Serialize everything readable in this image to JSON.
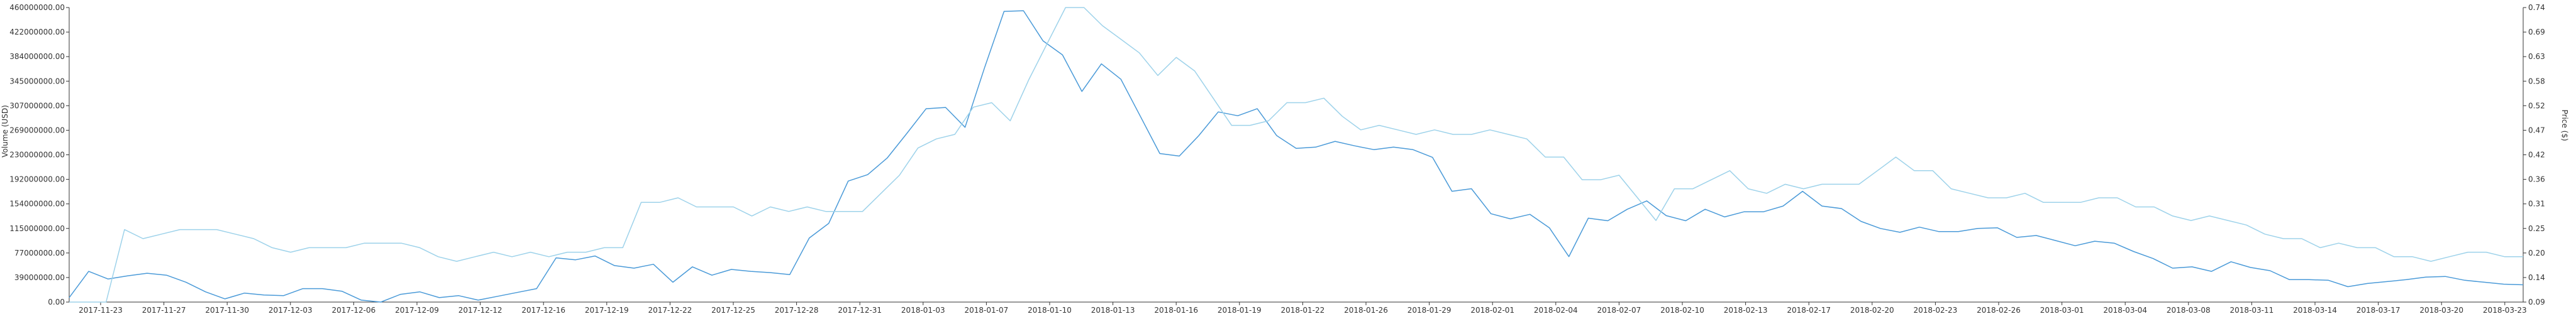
{
  "chart_data": {
    "type": "line",
    "title": "",
    "xlabel": "",
    "ylabel_left": "Volume (USD)",
    "ylabel_right": "Price ($)",
    "x_ticks": [
      "2017-11-23",
      "2017-11-27",
      "2017-11-30",
      "2017-12-03",
      "2017-12-06",
      "2017-12-09",
      "2017-12-12",
      "2017-12-16",
      "2017-12-19",
      "2017-12-22",
      "2017-12-25",
      "2017-12-28",
      "2017-12-31",
      "2018-01-03",
      "2018-01-07",
      "2018-01-10",
      "2018-01-13",
      "2018-01-16",
      "2018-01-19",
      "2018-01-22",
      "2018-01-26",
      "2018-01-29",
      "2018-02-01",
      "2018-02-04",
      "2018-02-07",
      "2018-02-10",
      "2018-02-13",
      "2018-02-17",
      "2018-02-20",
      "2018-02-23",
      "2018-02-26",
      "2018-03-01",
      "2018-03-04",
      "2018-03-08",
      "2018-03-11",
      "2018-03-14",
      "2018-03-17",
      "2018-03-20",
      "2018-03-23"
    ],
    "y_left_ticks": [
      "0.00",
      "39000000.00",
      "77000000.00",
      "115000000.00",
      "154000000.00",
      "192000000.00",
      "230000000.00",
      "269000000.00",
      "307000000.00",
      "345000000.00",
      "384000000.00",
      "422000000.00",
      "460000000.00"
    ],
    "y_right_ticks": [
      "0.09",
      "0.14",
      "0.20",
      "0.25",
      "0.31",
      "0.36",
      "0.42",
      "0.47",
      "0.52",
      "0.58",
      "0.63",
      "0.69",
      "0.74"
    ],
    "ylim_left": [
      0,
      460000000
    ],
    "ylim_right": [
      0.09,
      0.74
    ],
    "grid": false,
    "series": [
      {
        "name": "Volume",
        "axis": "left",
        "color": "#4a9ad8",
        "values": [
          7000000,
          48000000,
          36000000,
          41000000,
          45000000,
          42000000,
          31000000,
          16000000,
          5000000,
          14000000,
          11000000,
          10000000,
          21000000,
          21000000,
          17000000,
          3000000,
          0,
          12000000,
          16000000,
          7000000,
          10000000,
          3000000,
          9000000,
          15000000,
          21000000,
          69000000,
          66000000,
          72000000,
          57000000,
          53000000,
          59000000,
          31000000,
          55000000,
          42000000,
          51000000,
          48000000,
          46000000,
          43000000,
          100000000,
          123000000,
          189000000,
          199000000,
          225000000,
          263000000,
          302000000,
          304000000,
          273000000,
          366000000,
          454000000,
          455000000,
          408000000,
          386000000,
          329000000,
          372000000,
          348000000,
          290000000,
          232000000,
          228000000,
          260000000,
          297000000,
          291000000,
          302000000,
          260000000,
          240000000,
          242000000,
          251000000,
          244000000,
          238000000,
          242000000,
          238000000,
          226000000,
          173000000,
          177000000,
          138000000,
          130000000,
          137000000,
          116000000,
          71000000,
          131000000,
          127000000,
          145000000,
          158000000,
          135000000,
          127000000,
          145000000,
          133000000,
          141000000,
          141000000,
          150000000,
          173000000,
          150000000,
          146000000,
          126000000,
          115000000,
          109000000,
          117000000,
          110000000,
          110000000,
          115000000,
          116000000,
          101000000,
          104000000,
          96000000,
          88000000,
          95000000,
          92000000,
          79000000,
          68000000,
          53000000,
          55000000,
          48000000,
          63000000,
          54000000,
          49000000,
          35000000,
          35000000,
          34000000,
          24000000,
          29000000,
          32000000,
          35000000,
          39000000,
          40000000,
          34000000,
          31000000,
          28000000,
          27000000
        ]
      },
      {
        "name": "Price",
        "axis": "right",
        "color": "#9dd2ea",
        "values": [
          0.09,
          0.07,
          0.09,
          0.25,
          0.23,
          0.24,
          0.25,
          0.25,
          0.25,
          0.24,
          0.23,
          0.21,
          0.2,
          0.21,
          0.21,
          0.21,
          0.22,
          0.22,
          0.22,
          0.21,
          0.19,
          0.18,
          0.19,
          0.2,
          0.19,
          0.2,
          0.19,
          0.2,
          0.2,
          0.21,
          0.21,
          0.31,
          0.31,
          0.32,
          0.3,
          0.3,
          0.3,
          0.28,
          0.3,
          0.29,
          0.3,
          0.29,
          0.29,
          0.29,
          0.33,
          0.37,
          0.43,
          0.45,
          0.46,
          0.52,
          0.53,
          0.49,
          0.58,
          0.66,
          0.74,
          0.74,
          0.7,
          0.67,
          0.64,
          0.59,
          0.63,
          0.6,
          0.54,
          0.48,
          0.48,
          0.49,
          0.53,
          0.53,
          0.54,
          0.5,
          0.47,
          0.48,
          0.47,
          0.46,
          0.47,
          0.46,
          0.46,
          0.47,
          0.46,
          0.45,
          0.41,
          0.41,
          0.36,
          0.36,
          0.37,
          0.32,
          0.27,
          0.34,
          0.34,
          0.36,
          0.38,
          0.34,
          0.33,
          0.35,
          0.34,
          0.35,
          0.35,
          0.35,
          0.38,
          0.41,
          0.38,
          0.38,
          0.34,
          0.33,
          0.32,
          0.32,
          0.33,
          0.31,
          0.31,
          0.31,
          0.32,
          0.32,
          0.3,
          0.3,
          0.28,
          0.27,
          0.28,
          0.27,
          0.26,
          0.24,
          0.23,
          0.23,
          0.21,
          0.22,
          0.21,
          0.21,
          0.19,
          0.19,
          0.18,
          0.19,
          0.2,
          0.2,
          0.19,
          0.19
        ]
      }
    ]
  }
}
